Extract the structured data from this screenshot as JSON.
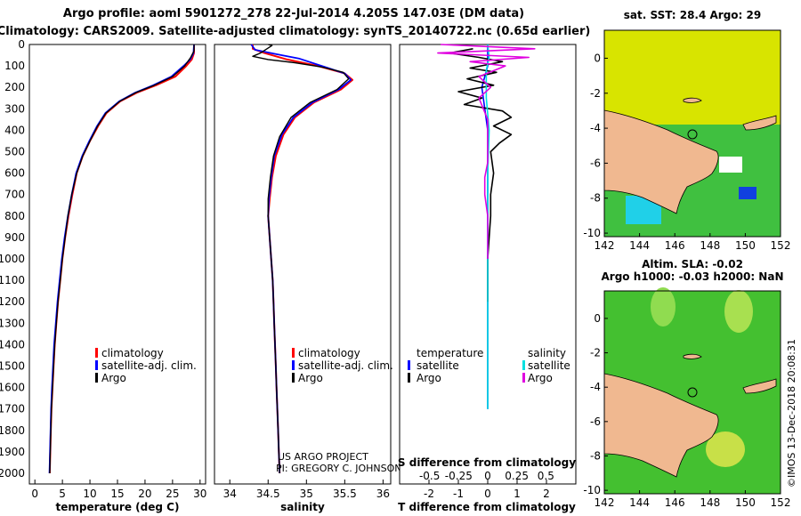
{
  "header": {
    "line1": "Argo profile: aoml 5901272_278 22-Jul-2014 4.205S 147.03E (DM data)",
    "line2": "Climatology: CARS2009. Satellite-adjusted climatology: synTS_20140722.nc (0.65d earlier)"
  },
  "colors": {
    "climatology": "#ff0000",
    "satellite": "#0000ff",
    "argo": "#000000",
    "sal_diff": "#00e0e0",
    "sal_clim_diff": "#e000e0",
    "land": "#f0b890",
    "sst_field": "#d8e400",
    "sla_field": "#44c030"
  },
  "depth_axis": {
    "min": 0,
    "max": 2050,
    "ticks": [
      0,
      100,
      200,
      300,
      400,
      500,
      600,
      700,
      800,
      900,
      1000,
      1100,
      1200,
      1300,
      1400,
      1500,
      1600,
      1700,
      1800,
      1900,
      2000
    ]
  },
  "footer": {
    "project": "US ARGO PROJECT",
    "pi": "PI: GREGORY C. JOHNSON"
  },
  "chart_data": [
    {
      "type": "line",
      "id": "temperature",
      "xlabel": "temperature (deg C)",
      "xlim": [
        -1,
        31
      ],
      "xticks": [
        0,
        5,
        10,
        15,
        20,
        25,
        30
      ],
      "ylim": [
        2050,
        0
      ],
      "legend": [
        "climatology",
        "satellite-adj. clim.",
        "Argo"
      ],
      "series": [
        {
          "name": "climatology",
          "color_key": "climatology",
          "points": [
            [
              28.9,
              0
            ],
            [
              28.9,
              40
            ],
            [
              28.5,
              70
            ],
            [
              27.5,
              100
            ],
            [
              25.5,
              150
            ],
            [
              22,
              190
            ],
            [
              18.5,
              225
            ],
            [
              15.5,
              265
            ],
            [
              13,
              320
            ],
            [
              11.5,
              380
            ],
            [
              10,
              450
            ],
            [
              8.7,
              520
            ],
            [
              7.6,
              600
            ],
            [
              6.8,
              700
            ],
            [
              6.1,
              800
            ],
            [
              5.5,
              900
            ],
            [
              5,
              1000
            ],
            [
              4.6,
              1100
            ],
            [
              4.2,
              1200
            ],
            [
              3.9,
              1300
            ],
            [
              3.6,
              1400
            ],
            [
              3.4,
              1500
            ],
            [
              3.2,
              1600
            ],
            [
              3.0,
              1700
            ],
            [
              2.9,
              1800
            ],
            [
              2.8,
              1900
            ],
            [
              2.7,
              2000
            ]
          ]
        },
        {
          "name": "satellite-adj. clim.",
          "color_key": "satellite",
          "points": [
            [
              28.9,
              0
            ],
            [
              28.8,
              40
            ],
            [
              28.2,
              70
            ],
            [
              27,
              100
            ],
            [
              24.8,
              150
            ],
            [
              21.5,
              190
            ],
            [
              18.2,
              225
            ],
            [
              15.3,
              265
            ],
            [
              12.8,
              320
            ],
            [
              11.3,
              380
            ],
            [
              9.9,
              450
            ],
            [
              8.6,
              520
            ],
            [
              7.5,
              600
            ],
            [
              6.7,
              700
            ],
            [
              6.0,
              800
            ],
            [
              5.4,
              900
            ],
            [
              4.9,
              1000
            ],
            [
              4.5,
              1100
            ],
            [
              4.1,
              1200
            ],
            [
              3.8,
              1300
            ],
            [
              3.5,
              1400
            ],
            [
              3.3,
              1500
            ],
            [
              3.1,
              1600
            ],
            [
              2.95,
              1700
            ],
            [
              2.85,
              1800
            ],
            [
              2.75,
              1900
            ],
            [
              2.65,
              2000
            ]
          ]
        },
        {
          "name": "Argo",
          "color_key": "argo",
          "points": [
            [
              28.9,
              0
            ],
            [
              28.9,
              30
            ],
            [
              28.3,
              60
            ],
            [
              27.2,
              100
            ],
            [
              25,
              150
            ],
            [
              21.7,
              190
            ],
            [
              18.3,
              225
            ],
            [
              15.4,
              265
            ],
            [
              12.9,
              320
            ],
            [
              11.4,
              380
            ],
            [
              10,
              450
            ],
            [
              8.7,
              520
            ],
            [
              7.6,
              600
            ],
            [
              6.7,
              700
            ],
            [
              6.0,
              800
            ],
            [
              5.5,
              900
            ],
            [
              5,
              1000
            ],
            [
              4.6,
              1100
            ],
            [
              4.2,
              1200
            ],
            [
              3.9,
              1300
            ],
            [
              3.6,
              1400
            ],
            [
              3.4,
              1500
            ],
            [
              3.2,
              1600
            ],
            [
              3.0,
              1700
            ],
            [
              2.9,
              1800
            ],
            [
              2.8,
              1900
            ],
            [
              2.7,
              2000
            ]
          ]
        }
      ]
    },
    {
      "type": "line",
      "id": "salinity",
      "xlabel": "salinity",
      "xlim": [
        33.8,
        36.1
      ],
      "xticks": [
        34,
        34.5,
        35,
        35.5,
        36
      ],
      "ylim": [
        2050,
        0
      ],
      "legend": [
        "climatology",
        "satellite-adj. clim.",
        "Argo"
      ],
      "series": [
        {
          "name": "climatology",
          "color_key": "climatology",
          "points": [
            [
              34.3,
              0
            ],
            [
              34.3,
              20
            ],
            [
              34.45,
              40
            ],
            [
              34.75,
              70
            ],
            [
              35.15,
              100
            ],
            [
              35.5,
              135
            ],
            [
              35.6,
              165
            ],
            [
              35.45,
              210
            ],
            [
              35.1,
              270
            ],
            [
              34.85,
              340
            ],
            [
              34.7,
              420
            ],
            [
              34.6,
              520
            ],
            [
              34.55,
              620
            ],
            [
              34.52,
              720
            ],
            [
              34.5,
              800
            ],
            [
              34.52,
              900
            ],
            [
              34.54,
              1000
            ],
            [
              34.56,
              1100
            ],
            [
              34.57,
              1200
            ],
            [
              34.58,
              1300
            ],
            [
              34.59,
              1400
            ],
            [
              34.6,
              1500
            ],
            [
              34.61,
              1600
            ],
            [
              34.62,
              1700
            ],
            [
              34.63,
              1800
            ],
            [
              34.64,
              1900
            ],
            [
              34.65,
              2000
            ]
          ]
        },
        {
          "name": "satellite-adj. clim.",
          "color_key": "satellite",
          "points": [
            [
              34.28,
              0
            ],
            [
              34.33,
              25
            ],
            [
              34.6,
              45
            ],
            [
              34.9,
              65
            ],
            [
              35.2,
              100
            ],
            [
              35.5,
              135
            ],
            [
              35.58,
              165
            ],
            [
              35.42,
              210
            ],
            [
              35.08,
              270
            ],
            [
              34.83,
              340
            ],
            [
              34.68,
              420
            ],
            [
              34.58,
              520
            ],
            [
              34.54,
              620
            ],
            [
              34.51,
              720
            ],
            [
              34.5,
              800
            ],
            [
              34.52,
              900
            ],
            [
              34.54,
              1000
            ],
            [
              34.56,
              1100
            ],
            [
              34.57,
              1200
            ],
            [
              34.58,
              1300
            ],
            [
              34.59,
              1400
            ],
            [
              34.6,
              1500
            ],
            [
              34.61,
              1600
            ],
            [
              34.62,
              1700
            ],
            [
              34.63,
              1800
            ],
            [
              34.64,
              1900
            ],
            [
              34.65,
              2000
            ]
          ]
        },
        {
          "name": "Argo",
          "color_key": "argo",
          "points": [
            [
              34.5,
              0
            ],
            [
              34.55,
              5
            ],
            [
              34.4,
              40
            ],
            [
              34.3,
              55
            ],
            [
              34.5,
              70
            ],
            [
              34.85,
              85
            ],
            [
              35.2,
              105
            ],
            [
              35.48,
              130
            ],
            [
              35.55,
              160
            ],
            [
              35.4,
              210
            ],
            [
              35.05,
              270
            ],
            [
              34.8,
              340
            ],
            [
              34.65,
              430
            ],
            [
              34.57,
              520
            ],
            [
              34.53,
              620
            ],
            [
              34.5,
              720
            ],
            [
              34.5,
              800
            ],
            [
              34.52,
              900
            ],
            [
              34.54,
              1000
            ],
            [
              34.56,
              1100
            ],
            [
              34.57,
              1200
            ],
            [
              34.58,
              1300
            ],
            [
              34.59,
              1400
            ],
            [
              34.6,
              1500
            ],
            [
              34.61,
              1600
            ],
            [
              34.62,
              1700
            ],
            [
              34.63,
              1800
            ],
            [
              34.64,
              1900
            ],
            [
              34.65,
              2000
            ]
          ]
        }
      ]
    },
    {
      "type": "line",
      "id": "differences",
      "xlabel": "T difference from climatology",
      "x2label": "S difference from climatology",
      "xlim": [
        -3,
        3
      ],
      "xticks": [
        -2,
        -1,
        0,
        1,
        2
      ],
      "x2ticks": [
        "-0.5",
        "-0.25",
        "0",
        "0.25",
        "0.5"
      ],
      "ylim": [
        2050,
        0
      ],
      "legend_left_title": "temperature",
      "legend_right_title": "salinity",
      "legend": [
        "satellite",
        "Argo"
      ],
      "series": [
        {
          "name": "T satellite",
          "color_key": "satellite",
          "points": [
            [
              0,
              0
            ],
            [
              0,
              100
            ],
            [
              -0.2,
              200
            ],
            [
              -0.1,
              300
            ],
            [
              0,
              400
            ],
            [
              0,
              500
            ],
            [
              0,
              600
            ],
            [
              0,
              800
            ],
            [
              0,
              1000
            ],
            [
              0,
              1200
            ],
            [
              0,
              1400
            ],
            [
              0,
              1600
            ],
            [
              0,
              1700
            ]
          ]
        },
        {
          "name": "T Argo",
          "color_key": "argo",
          "points": [
            [
              -0.5,
              20
            ],
            [
              -1.3,
              40
            ],
            [
              -0.3,
              60
            ],
            [
              0.5,
              80
            ],
            [
              -0.6,
              110
            ],
            [
              0.3,
              130
            ],
            [
              -0.7,
              160
            ],
            [
              0.2,
              190
            ],
            [
              -1.0,
              220
            ],
            [
              -0.2,
              250
            ],
            [
              -0.8,
              280
            ],
            [
              0.5,
              310
            ],
            [
              0.8,
              340
            ],
            [
              0.2,
              380
            ],
            [
              0.8,
              420
            ],
            [
              0.4,
              460
            ],
            [
              0.1,
              500
            ],
            [
              0.2,
              600
            ],
            [
              0.1,
              700
            ],
            [
              0.1,
              800
            ],
            [
              0.05,
              900
            ],
            [
              0,
              1000
            ],
            [
              0,
              1100
            ],
            [
              0,
              1200
            ]
          ]
        },
        {
          "name": "S satellite",
          "color_key": "sal_diff",
          "points": [
            [
              0,
              0
            ],
            [
              0.05,
              60
            ],
            [
              -0.05,
              120
            ],
            [
              -0.05,
              250
            ],
            [
              0.05,
              400
            ],
            [
              0,
              600
            ],
            [
              0,
              1000
            ],
            [
              0,
              1400
            ],
            [
              0,
              1700
            ]
          ]
        },
        {
          "name": "S Argo",
          "color_key": "sal_clim_diff",
          "points": [
            [
              -1.6,
              0
            ],
            [
              1.6,
              20
            ],
            [
              -1.7,
              40
            ],
            [
              1.4,
              60
            ],
            [
              -0.6,
              80
            ],
            [
              0.6,
              100
            ],
            [
              -0.3,
              150
            ],
            [
              0.1,
              200
            ],
            [
              -0.3,
              250
            ],
            [
              0,
              350
            ],
            [
              0,
              550
            ],
            [
              -0.1,
              620
            ],
            [
              -0.1,
              700
            ],
            [
              0,
              800
            ],
            [
              0,
              1000
            ]
          ]
        }
      ]
    }
  ],
  "maps": [
    {
      "title": "sat. SST: 28.4 Argo: 29",
      "xticks": [
        "142",
        "144",
        "146",
        "148",
        "150",
        "152"
      ],
      "yticks": [
        "0",
        "-2",
        "-4",
        "-6",
        "-8",
        "-10"
      ],
      "lon_range": [
        142,
        152
      ],
      "lat_range": [
        -10.2,
        1.6
      ],
      "marker": [
        147.03,
        -4.205
      ]
    },
    {
      "title_line1": "Altim. SLA: -0.02",
      "title_line2": "Argo h1000: -0.03 h2000: NaN",
      "xticks": [
        "142",
        "144",
        "146",
        "148",
        "150",
        "152"
      ],
      "yticks": [
        "0",
        "-2",
        "-4",
        "-6",
        "-8",
        "-10"
      ],
      "lon_range": [
        142,
        152
      ],
      "lat_range": [
        -10.2,
        1.6
      ],
      "marker": [
        147.03,
        -4.205
      ]
    }
  ],
  "watermark": "©IMOS 13-Dec-2018 20:08:31"
}
